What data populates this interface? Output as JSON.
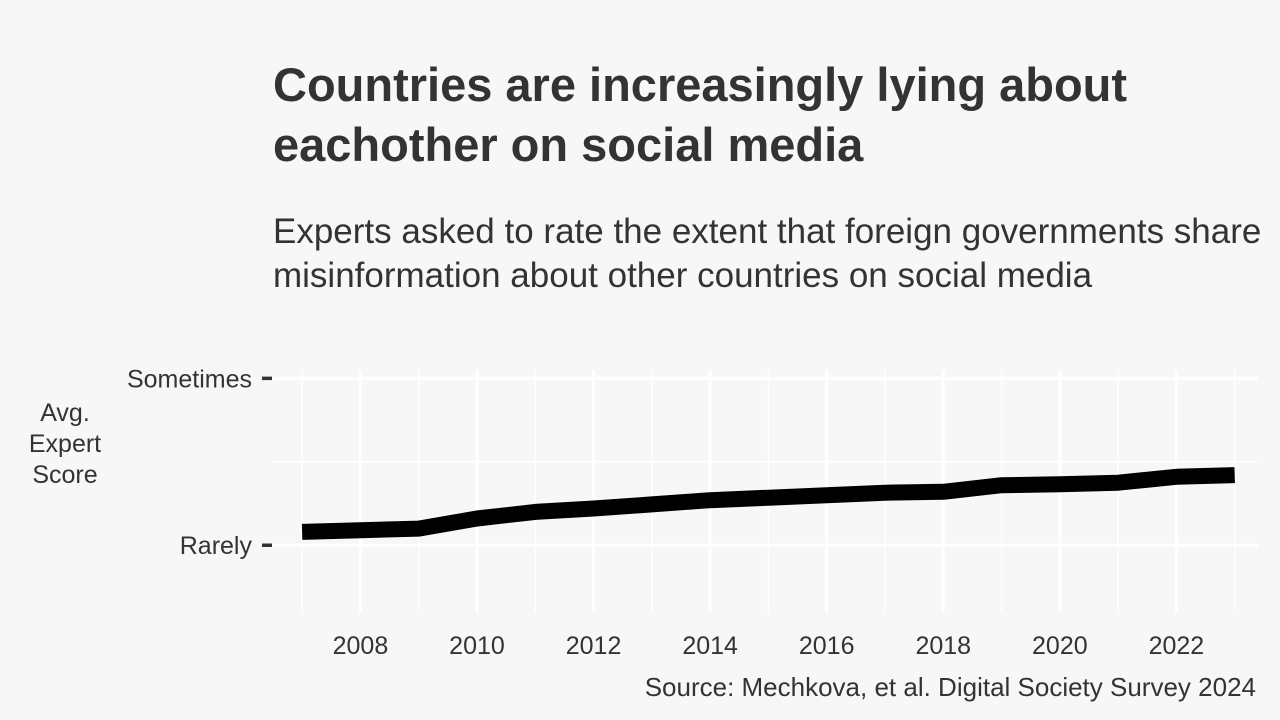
{
  "chart_data": {
    "type": "line",
    "title": "Countries are increasingly lying about eachother on social media",
    "subtitle": "Experts asked to rate the extent that foreign governments share misinformation about other countries on social media",
    "ylabel": "Avg. Expert Score",
    "xlabel": "",
    "x": [
      2007,
      2008,
      2009,
      2010,
      2011,
      2012,
      2013,
      2014,
      2015,
      2016,
      2017,
      2018,
      2019,
      2020,
      2021,
      2022,
      2023
    ],
    "values": [
      0.08,
      0.09,
      0.1,
      0.16,
      0.2,
      0.22,
      0.245,
      0.27,
      0.285,
      0.3,
      0.315,
      0.32,
      0.36,
      0.365,
      0.375,
      0.41,
      0.42
    ],
    "xlim": [
      2006.5,
      2023.4
    ],
    "ylim": [
      -0.4,
      1.05
    ],
    "x_ticks": [
      2008,
      2010,
      2012,
      2014,
      2016,
      2018,
      2020,
      2022
    ],
    "y_ticks": [
      {
        "value": 0,
        "label": "Rarely"
      },
      {
        "value": 1,
        "label": "Sometimes"
      }
    ],
    "grid": true,
    "line_color": "#000000",
    "source": "Source: Mechkova, et al. Digital Society Survey 2024"
  }
}
